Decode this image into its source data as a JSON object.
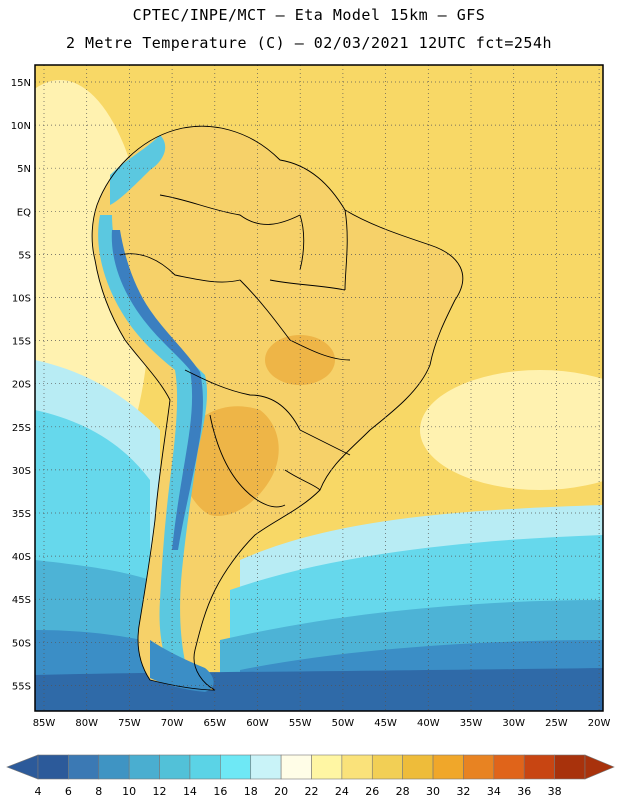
{
  "header": {
    "line1": "CPTEC/INPE/MCT –  Eta Model 15km – GFS",
    "line2": "2 Metre Temperature (C) – 02/03/2021 12UTC fct=254h"
  },
  "lat_labels": [
    "15N",
    "10N",
    "5N",
    "EQ",
    "5S",
    "10S",
    "15S",
    "20S",
    "25S",
    "30S",
    "35S",
    "40S",
    "45S",
    "50S",
    "55S"
  ],
  "lon_labels": [
    "85W",
    "80W",
    "75W",
    "70W",
    "65W",
    "60W",
    "55W",
    "50W",
    "45W",
    "40W",
    "35W",
    "30W",
    "25W",
    "20W"
  ],
  "colorbar": {
    "levels": [
      "4",
      "6",
      "8",
      "10",
      "12",
      "14",
      "16",
      "18",
      "20",
      "22",
      "24",
      "26",
      "28",
      "30",
      "32",
      "34",
      "36",
      "38"
    ],
    "colors": [
      "#2c5a9a",
      "#3b79b4",
      "#3f94c3",
      "#4aaed0",
      "#52c1d8",
      "#5bd3e6",
      "#6ee8f5",
      "#c9f3f8",
      "#fffde7",
      "#fff6a3",
      "#fae27a",
      "#f2cf55",
      "#eebc3a",
      "#f0a72a",
      "#e88322",
      "#e0641a",
      "#c84512",
      "#a8320c"
    ]
  },
  "map_colors": {
    "ocean_warm": "#f8d866",
    "ocean_mild": "#fff2b0",
    "ocean_cool": "#fffde7",
    "land_hot": "#eeb547",
    "land_warm": "#f6d169",
    "andes_cold": "#3b7fc0",
    "andes_cool": "#5bc8e0",
    "south_ocean_1": "#b8ecf4",
    "south_ocean_2": "#66d8ec",
    "south_ocean_3": "#4db3d6",
    "south_ocean_4": "#3b8ec6",
    "south_ocean_5": "#2f6aa8",
    "border": "#000000"
  }
}
